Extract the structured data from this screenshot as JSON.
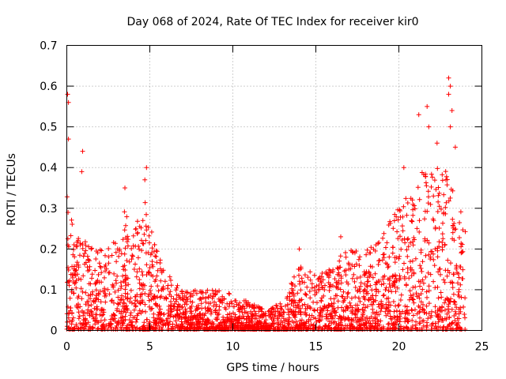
{
  "chart_data": {
    "type": "scatter",
    "title": "Day 068 of 2024, Rate Of TEC Index for receiver kir0",
    "xlabel": "GPS time / hours",
    "ylabel": "ROTI / TECUs",
    "xlim": [
      0,
      25
    ],
    "ylim": [
      0,
      0.7
    ],
    "x_ticks": [
      0,
      5,
      10,
      15,
      20,
      25
    ],
    "y_ticks": [
      0,
      0.1,
      0.2,
      0.3,
      0.4,
      0.5,
      0.6,
      0.7
    ],
    "x_tick_labels": [
      "0",
      "5",
      "10",
      "15",
      "20",
      "25"
    ],
    "y_tick_labels": [
      "0",
      "0.1",
      "0.2",
      "0.3",
      "0.4",
      "0.5",
      "0.6",
      "0.7"
    ],
    "grid": true,
    "marker": "+",
    "series_color": "#ff0000",
    "envelope": {
      "hours": [
        0.0,
        0.1,
        0.5,
        1.0,
        2.0,
        3.0,
        3.5,
        4.0,
        4.7,
        5.0,
        6.0,
        7.0,
        8.0,
        9.0,
        10.0,
        11.0,
        12.0,
        13.0,
        14.0,
        15.0,
        16.0,
        17.0,
        18.0,
        19.0,
        20.0,
        20.5,
        21.0,
        21.5,
        22.0,
        23.0,
        23.5,
        24.0
      ],
      "upper_roti": [
        0.34,
        0.3,
        0.25,
        0.22,
        0.2,
        0.22,
        0.3,
        0.24,
        0.32,
        0.26,
        0.14,
        0.1,
        0.1,
        0.1,
        0.09,
        0.07,
        0.05,
        0.07,
        0.16,
        0.14,
        0.17,
        0.2,
        0.2,
        0.25,
        0.3,
        0.33,
        0.35,
        0.4,
        0.4,
        0.4,
        0.3,
        0.3
      ]
    },
    "outliers": [
      {
        "x": 0.05,
        "y": 0.58
      },
      {
        "x": 0.1,
        "y": 0.56
      },
      {
        "x": 0.1,
        "y": 0.47
      },
      {
        "x": 0.95,
        "y": 0.44
      },
      {
        "x": 0.9,
        "y": 0.39
      },
      {
        "x": 3.5,
        "y": 0.35
      },
      {
        "x": 4.8,
        "y": 0.4
      },
      {
        "x": 4.7,
        "y": 0.37
      },
      {
        "x": 21.2,
        "y": 0.53
      },
      {
        "x": 21.7,
        "y": 0.55
      },
      {
        "x": 21.8,
        "y": 0.5
      },
      {
        "x": 22.3,
        "y": 0.46
      },
      {
        "x": 23.0,
        "y": 0.62
      },
      {
        "x": 23.1,
        "y": 0.6
      },
      {
        "x": 23.0,
        "y": 0.58
      },
      {
        "x": 23.2,
        "y": 0.54
      },
      {
        "x": 23.1,
        "y": 0.5
      },
      {
        "x": 23.4,
        "y": 0.45
      },
      {
        "x": 20.3,
        "y": 0.4
      },
      {
        "x": 14.0,
        "y": 0.2
      },
      {
        "x": 16.5,
        "y": 0.23
      }
    ]
  }
}
